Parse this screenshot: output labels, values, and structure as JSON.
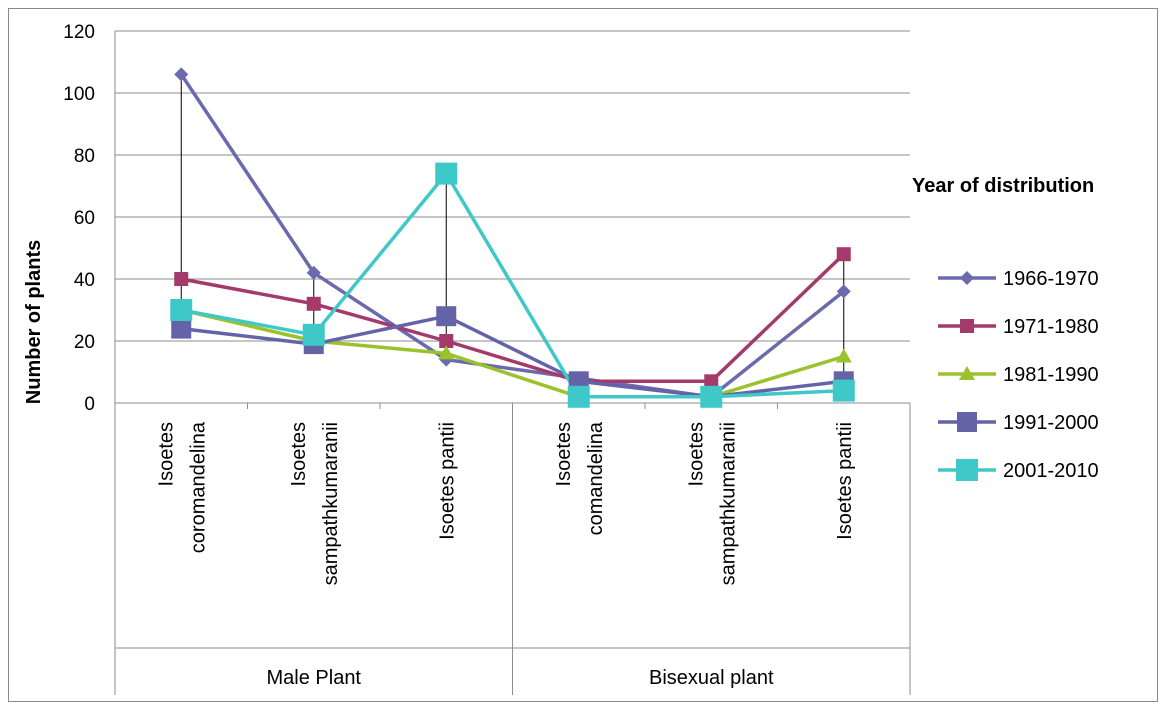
{
  "chart_data": {
    "type": "line",
    "title": "",
    "xlabel": "",
    "ylabel": "Number of plants",
    "ylim": [
      0,
      120
    ],
    "yticks": [
      "0",
      "20",
      "40",
      "60",
      "80",
      "100",
      "120"
    ],
    "grid": "horizontal",
    "legend_title": "Year of distribution",
    "legend_position": "right",
    "categories": [
      [
        "Isoetes",
        "coromandelina"
      ],
      [
        "Isoetes",
        "sampathkumaranii"
      ],
      [
        "Isoetes pantii"
      ],
      [
        "Isoetes",
        "comandelina"
      ],
      [
        "Isoetes",
        "sampathkumaranii"
      ],
      [
        "Isoetes pantii"
      ]
    ],
    "groups": [
      {
        "label": "Male Plant",
        "span": [
          0,
          2
        ]
      },
      {
        "label": "Bisexual plant",
        "span": [
          3,
          5
        ]
      }
    ],
    "series": [
      {
        "name": "1966-1970",
        "marker": "diamond",
        "color": "#6a6aad",
        "values": [
          106,
          42,
          14,
          8,
          2,
          36
        ]
      },
      {
        "name": "1971-1980",
        "marker": "square-small",
        "color": "#a33a6b",
        "values": [
          40,
          32,
          20,
          7,
          7,
          48
        ]
      },
      {
        "name": "1981-1990",
        "marker": "triangle",
        "color": "#9bc22c",
        "values": [
          30,
          20,
          16,
          2,
          2,
          15
        ]
      },
      {
        "name": "1991-2000",
        "marker": "square",
        "color": "#6563a8",
        "values": [
          24,
          19,
          28,
          7,
          2,
          7
        ]
      },
      {
        "name": "2001-2010",
        "marker": "square-large",
        "color": "#3fc8c8",
        "values": [
          30,
          22,
          74,
          2,
          2,
          4
        ]
      }
    ],
    "high_low_lines": true
  }
}
